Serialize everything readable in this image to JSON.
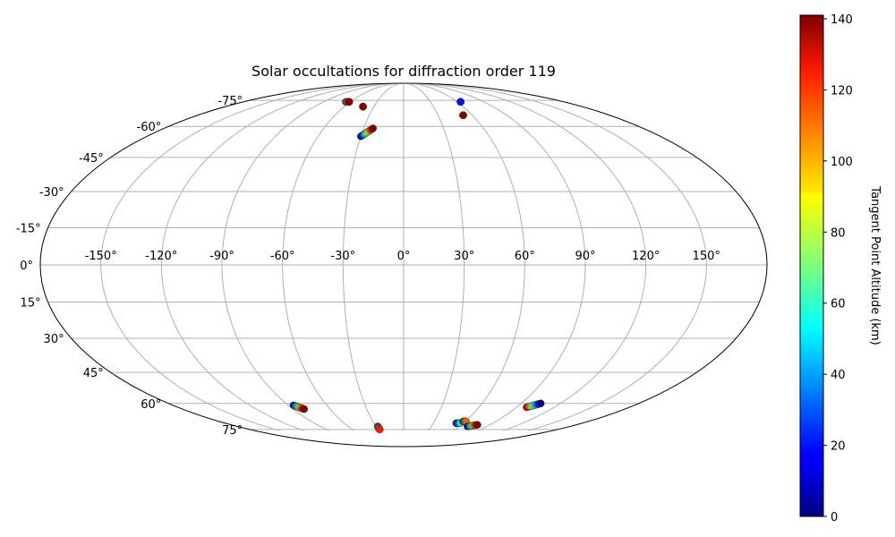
{
  "chart_data": {
    "type": "scatter",
    "projection": "mollweide",
    "title": "Solar occultations for diffraction order 119",
    "grid": true,
    "longitude_ticks": [
      "-150°",
      "-120°",
      "-90°",
      "-60°",
      "-30°",
      "0°",
      "30°",
      "60°",
      "90°",
      "120°",
      "150°"
    ],
    "latitude_ticks": [
      "75°",
      "60°",
      "45°",
      "30°",
      "15°",
      "0°",
      "-15°",
      "-30°",
      "-45°",
      "-60°",
      "-75°"
    ],
    "colorbar": {
      "label": "Tangent Point Altitude (km)",
      "colormap": "jet",
      "range": [
        0,
        141
      ],
      "ticks": [
        "0",
        "20",
        "40",
        "60",
        "80",
        "100",
        "120",
        "140"
      ]
    },
    "groups": [
      {
        "lon_start": -65,
        "lat_start": 74,
        "lon_end": -61,
        "lat_end": 74,
        "alt_start": 20,
        "alt_end": 140
      },
      {
        "lon_start": -41,
        "lat_start": 71,
        "lon_end": -41,
        "lat_end": 71,
        "alt_start": 130,
        "alt_end": 140
      },
      {
        "lon_start": -30,
        "lat_start": 55,
        "lon_end": -23,
        "lat_end": 59,
        "alt_start": 0,
        "alt_end": 140
      },
      {
        "lon_start": 52,
        "lat_start": 66,
        "lon_end": 52,
        "lat_end": 66,
        "alt_start": 135,
        "alt_end": 140
      },
      {
        "lon_start": 64,
        "lat_start": 74,
        "lon_end": 64,
        "lat_end": 74,
        "alt_start": 10,
        "alt_end": 20
      },
      {
        "lon_start": -86,
        "lat_start": -61,
        "lon_end": -81,
        "lat_end": -63,
        "alt_start": 0,
        "alt_end": 140
      },
      {
        "lon_start": -28,
        "lat_start": -73,
        "lon_end": -28,
        "lat_end": -75,
        "alt_start": 0,
        "alt_end": 120
      },
      {
        "lon_start": 53,
        "lat_start": -71,
        "lon_end": 57,
        "lat_end": -71,
        "alt_start": 5,
        "alt_end": 50
      },
      {
        "lon_start": 58,
        "lat_start": -70,
        "lon_end": 61,
        "lat_end": -70,
        "alt_start": 5,
        "alt_end": 110
      },
      {
        "lon_start": 69,
        "lat_start": -73,
        "lon_end": 77,
        "lat_end": -72,
        "alt_start": 0,
        "alt_end": 140
      },
      {
        "lon_start": 98,
        "lat_start": -62,
        "lon_end": 105,
        "lat_end": -60,
        "alt_start": 140,
        "alt_end": 0
      }
    ]
  }
}
